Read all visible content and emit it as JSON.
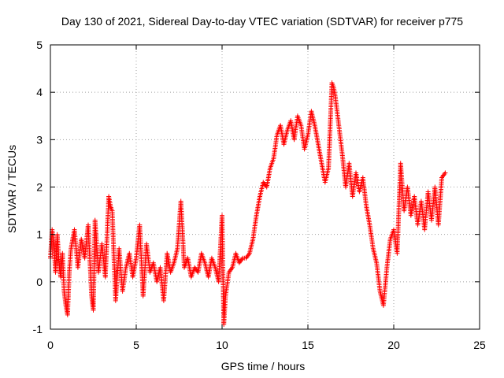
{
  "chart_data": {
    "type": "scatter",
    "title": "Day 130 of 2021, Sidereal Day-to-day VTEC variation (SDTVAR) for receiver p775",
    "xlabel": "GPS time / hours",
    "ylabel": "SDTVAR / TECUs",
    "xlim": [
      0,
      25
    ],
    "ylim": [
      -1,
      5
    ],
    "xticks": [
      0,
      5,
      10,
      15,
      20,
      25
    ],
    "yticks": [
      -1,
      0,
      1,
      2,
      3,
      4,
      5
    ],
    "grid": true,
    "marker": "+",
    "color": "#ff0000",
    "series": [
      {
        "name": "p775",
        "note": "Dense scatter of many tracks; values are approximate envelope points read from the figure",
        "points": [
          [
            0.0,
            0.5
          ],
          [
            0.1,
            1.1
          ],
          [
            0.2,
            0.8
          ],
          [
            0.3,
            0.2
          ],
          [
            0.4,
            1.0
          ],
          [
            0.5,
            0.4
          ],
          [
            0.6,
            0.1
          ],
          [
            0.7,
            0.6
          ],
          [
            0.8,
            -0.2
          ],
          [
            0.9,
            -0.5
          ],
          [
            1.0,
            -0.7
          ],
          [
            1.1,
            0.2
          ],
          [
            1.2,
            0.7
          ],
          [
            1.4,
            1.1
          ],
          [
            1.6,
            0.3
          ],
          [
            1.8,
            0.9
          ],
          [
            2.0,
            0.5
          ],
          [
            2.2,
            1.2
          ],
          [
            2.4,
            -0.3
          ],
          [
            2.5,
            -0.6
          ],
          [
            2.6,
            1.3
          ],
          [
            2.8,
            0.2
          ],
          [
            3.0,
            0.8
          ],
          [
            3.2,
            0.1
          ],
          [
            3.4,
            1.8
          ],
          [
            3.5,
            1.6
          ],
          [
            3.6,
            1.5
          ],
          [
            3.8,
            -0.4
          ],
          [
            4.0,
            0.7
          ],
          [
            4.2,
            -0.2
          ],
          [
            4.4,
            0.3
          ],
          [
            4.6,
            0.6
          ],
          [
            4.8,
            0.1
          ],
          [
            5.0,
            0.5
          ],
          [
            5.2,
            1.2
          ],
          [
            5.4,
            -0.3
          ],
          [
            5.6,
            0.8
          ],
          [
            5.8,
            0.2
          ],
          [
            6.0,
            0.4
          ],
          [
            6.2,
            0.0
          ],
          [
            6.4,
            0.3
          ],
          [
            6.6,
            -0.4
          ],
          [
            6.8,
            0.6
          ],
          [
            7.0,
            0.2
          ],
          [
            7.2,
            0.4
          ],
          [
            7.4,
            0.7
          ],
          [
            7.6,
            1.7
          ],
          [
            7.8,
            0.3
          ],
          [
            8.0,
            0.5
          ],
          [
            8.2,
            0.1
          ],
          [
            8.4,
            0.3
          ],
          [
            8.6,
            0.2
          ],
          [
            8.8,
            0.6
          ],
          [
            9.0,
            0.4
          ],
          [
            9.2,
            0.1
          ],
          [
            9.4,
            0.5
          ],
          [
            9.6,
            0.3
          ],
          [
            9.8,
            0.0
          ],
          [
            10.0,
            1.4
          ],
          [
            10.1,
            -0.9
          ],
          [
            10.2,
            -0.3
          ],
          [
            10.4,
            0.2
          ],
          [
            10.6,
            0.3
          ],
          [
            10.8,
            0.6
          ],
          [
            11.0,
            0.4
          ],
          [
            11.2,
            0.5
          ],
          [
            11.4,
            0.5
          ],
          [
            11.6,
            0.6
          ],
          [
            11.8,
            0.9
          ],
          [
            12.0,
            1.4
          ],
          [
            12.2,
            1.8
          ],
          [
            12.4,
            2.1
          ],
          [
            12.6,
            2.0
          ],
          [
            12.8,
            2.4
          ],
          [
            13.0,
            2.6
          ],
          [
            13.2,
            3.1
          ],
          [
            13.4,
            3.3
          ],
          [
            13.6,
            2.9
          ],
          [
            13.8,
            3.2
          ],
          [
            14.0,
            3.4
          ],
          [
            14.2,
            3.0
          ],
          [
            14.4,
            3.5
          ],
          [
            14.6,
            3.3
          ],
          [
            14.8,
            2.8
          ],
          [
            15.0,
            3.1
          ],
          [
            15.2,
            3.6
          ],
          [
            15.4,
            3.3
          ],
          [
            15.6,
            2.9
          ],
          [
            15.8,
            2.5
          ],
          [
            16.0,
            2.1
          ],
          [
            16.2,
            2.4
          ],
          [
            16.4,
            4.2
          ],
          [
            16.5,
            4.1
          ],
          [
            16.6,
            3.9
          ],
          [
            16.8,
            3.3
          ],
          [
            17.0,
            2.7
          ],
          [
            17.2,
            2.0
          ],
          [
            17.4,
            2.5
          ],
          [
            17.6,
            1.8
          ],
          [
            17.8,
            2.3
          ],
          [
            18.0,
            1.9
          ],
          [
            18.2,
            2.2
          ],
          [
            18.4,
            1.6
          ],
          [
            18.6,
            1.2
          ],
          [
            18.8,
            0.7
          ],
          [
            19.0,
            0.4
          ],
          [
            19.2,
            -0.2
          ],
          [
            19.4,
            -0.5
          ],
          [
            19.6,
            0.3
          ],
          [
            19.8,
            0.9
          ],
          [
            20.0,
            1.1
          ],
          [
            20.2,
            0.6
          ],
          [
            20.4,
            2.5
          ],
          [
            20.6,
            1.5
          ],
          [
            20.8,
            2.0
          ],
          [
            21.0,
            1.4
          ],
          [
            21.2,
            1.8
          ],
          [
            21.4,
            1.2
          ],
          [
            21.6,
            1.7
          ],
          [
            21.8,
            1.1
          ],
          [
            22.0,
            1.9
          ],
          [
            22.2,
            1.3
          ],
          [
            22.4,
            2.0
          ],
          [
            22.6,
            1.2
          ],
          [
            22.8,
            2.2
          ],
          [
            23.0,
            2.3
          ]
        ]
      }
    ]
  }
}
